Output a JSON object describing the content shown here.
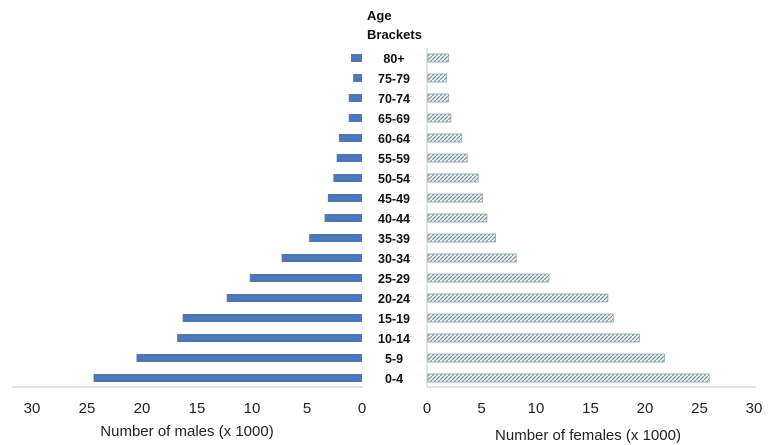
{
  "chart_data": {
    "type": "bar",
    "orientation": "horizontal",
    "layout": "population-pyramid",
    "center_title": [
      "Age",
      "Brackets"
    ],
    "categories": [
      "80+",
      "75-79",
      "70-74",
      "65-69",
      "60-64",
      "55-59",
      "50-54",
      "45-49",
      "40-44",
      "35-39",
      "30-34",
      "25-29",
      "20-24",
      "15-19",
      "10-14",
      "5-9",
      "0-4"
    ],
    "series": [
      {
        "name": "Males",
        "side": "left",
        "color": "#4f76b8",
        "values": [
          1.0,
          0.8,
          1.2,
          1.2,
          2.1,
          2.3,
          2.6,
          3.1,
          3.4,
          4.8,
          7.3,
          10.2,
          12.3,
          16.3,
          16.8,
          20.5,
          24.4
        ]
      },
      {
        "name": "Females",
        "side": "right",
        "color": "#8fa8b0",
        "pattern": "hatched",
        "values": [
          1.9,
          1.7,
          1.9,
          2.1,
          3.1,
          3.6,
          4.6,
          5.0,
          5.4,
          6.2,
          8.1,
          11.1,
          16.5,
          17.0,
          19.4,
          21.7,
          25.8
        ]
      }
    ],
    "left_axis": {
      "label": "Number of males (x 1000)",
      "ticks": [
        "30",
        "25",
        "20",
        "15",
        "10",
        "5",
        "0"
      ],
      "range": [
        30,
        0
      ]
    },
    "right_axis": {
      "label": "Number of females (x 1000)",
      "ticks": [
        "0",
        "5",
        "10",
        "15",
        "20",
        "25",
        "30"
      ],
      "range": [
        0,
        30
      ]
    },
    "grid": false,
    "legend": "none"
  }
}
